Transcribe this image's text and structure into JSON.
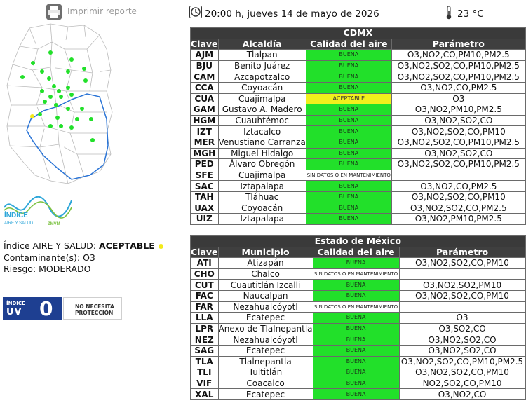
{
  "header": {
    "print_label": "Imprimir reporte",
    "datetime": "20:00 h, jueves 14 de mayo de 2026",
    "temperature": "23 °C"
  },
  "logo": {
    "title": "ÍNDICE",
    "subtitle": "AIRE Y SALUD",
    "tag": "ZMVM"
  },
  "summary": {
    "index_label": "Índice AIRE Y SALUD: ",
    "index_value": "ACEPTABLE",
    "pollutant_label": "Contaminante(s): ",
    "pollutant_value": "O3",
    "risk_label": "Riesgo: ",
    "risk_value": "MODERADO"
  },
  "uv": {
    "small": "ÍNDICE",
    "label": "UV",
    "value": "0",
    "note_line1": "NO NECESITA",
    "note_line2": "PROTECCIÓN"
  },
  "colors": {
    "buena": "#22e02a",
    "aceptable": "#f2f01c",
    "header": "#3f3f3f",
    "uv": "#1e3f91"
  },
  "cdmx": {
    "title": "CDMX",
    "headers": [
      "Clave",
      "Alcaldía",
      "Calidad del aire",
      "Parámetro"
    ],
    "rows": [
      {
        "clave": "AJM",
        "name": "Tlalpan",
        "quality": "BUENA",
        "level": "buena",
        "params": "O3,NO2,CO,PM10,PM2.5"
      },
      {
        "clave": "BJU",
        "name": "Benito Juárez",
        "quality": "BUENA",
        "level": "buena",
        "params": "O3,NO2,SO2,CO,PM10,PM2.5"
      },
      {
        "clave": "CAM",
        "name": "Azcapotzalco",
        "quality": "BUENA",
        "level": "buena",
        "params": "O3,NO2,SO2,CO,PM10,PM2.5"
      },
      {
        "clave": "CCA",
        "name": "Coyoacán",
        "quality": "BUENA",
        "level": "buena",
        "params": "O3,NO2,CO,PM2.5"
      },
      {
        "clave": "CUA",
        "name": "Cuajimalpa",
        "quality": "ACEPTABLE",
        "level": "aceptable",
        "params": "O3"
      },
      {
        "clave": "GAM",
        "name": "Gustavo A. Madero",
        "quality": "BUENA",
        "level": "buena",
        "params": "O3,NO2,PM10,PM2.5"
      },
      {
        "clave": "HGM",
        "name": "Cuauhtémoc",
        "quality": "BUENA",
        "level": "buena",
        "params": "O3,NO2,SO2,CO"
      },
      {
        "clave": "IZT",
        "name": "Iztacalco",
        "quality": "BUENA",
        "level": "buena",
        "params": "O3,NO2,SO2,CO,PM10"
      },
      {
        "clave": "MER",
        "name": "Venustiano Carranza",
        "quality": "BUENA",
        "level": "buena",
        "params": "O3,NO2,SO2,CO,PM10,PM2.5"
      },
      {
        "clave": "MGH",
        "name": "Miguel Hidalgo",
        "quality": "BUENA",
        "level": "buena",
        "params": "O3,NO2,SO2,CO"
      },
      {
        "clave": "PED",
        "name": "Álvaro Obregón",
        "quality": "BUENA",
        "level": "buena",
        "params": "O3,NO2,SO2,CO,PM10,PM2.5"
      },
      {
        "clave": "SFE",
        "name": "Cuajimalpa",
        "quality": "SIN DATOS O EN MANTENIMIENTO",
        "level": "none",
        "params": ""
      },
      {
        "clave": "SAC",
        "name": "Iztapalapa",
        "quality": "BUENA",
        "level": "buena",
        "params": "O3,NO2,CO,PM2.5"
      },
      {
        "clave": "TAH",
        "name": "Tláhuac",
        "quality": "BUENA",
        "level": "buena",
        "params": "O3,NO2,SO2,CO,PM10"
      },
      {
        "clave": "UAX",
        "name": "Coyoacán",
        "quality": "BUENA",
        "level": "buena",
        "params": "O3,NO2,SO2,CO,PM2.5"
      },
      {
        "clave": "UIZ",
        "name": "Iztapalapa",
        "quality": "BUENA",
        "level": "buena",
        "params": "O3,NO2,PM10,PM2.5"
      }
    ]
  },
  "edomex": {
    "title": "Estado de México",
    "headers": [
      "Clave",
      "Municipio",
      "Calidad del aire",
      "Parámetro"
    ],
    "rows": [
      {
        "clave": "ATI",
        "name": "Atizapán",
        "quality": "BUENA",
        "level": "buena",
        "params": "O3,NO2,SO2,CO,PM10"
      },
      {
        "clave": "CHO",
        "name": "Chalco",
        "quality": "SIN DATOS O EN MANTENIMIENTO",
        "level": "none",
        "params": ""
      },
      {
        "clave": "CUT",
        "name": "Cuautitlán Izcalli",
        "quality": "BUENA",
        "level": "buena",
        "params": "O3,NO2,SO2,PM10"
      },
      {
        "clave": "FAC",
        "name": "Naucalpan",
        "quality": "BUENA",
        "level": "buena",
        "params": "O3,NO2,SO2,CO,PM10"
      },
      {
        "clave": "FAR",
        "name": "Nezahualcóyotl",
        "quality": "SIN DATOS O EN MANTENIMIENTO",
        "level": "none",
        "params": ""
      },
      {
        "clave": "LLA",
        "name": "Ecatepec",
        "quality": "BUENA",
        "level": "buena",
        "params": "O3"
      },
      {
        "clave": "LPR",
        "name": "Anexo de Tlalnepantla",
        "quality": "BUENA",
        "level": "buena",
        "params": "O3,SO2,CO"
      },
      {
        "clave": "NEZ",
        "name": "Nezahualcóyotl",
        "quality": "BUENA",
        "level": "buena",
        "params": "O3,NO2,SO2,CO"
      },
      {
        "clave": "SAG",
        "name": "Ecatepec",
        "quality": "BUENA",
        "level": "buena",
        "params": "O3,NO2,SO2,CO"
      },
      {
        "clave": "TLA",
        "name": "Tlalnepantla",
        "quality": "BUENA",
        "level": "buena",
        "params": "O3,NO2,SO2,CO,PM10,PM2.5"
      },
      {
        "clave": "TLI",
        "name": "Tultitlán",
        "quality": "BUENA",
        "level": "buena",
        "params": "O3,NO2,SO2,CO,PM10"
      },
      {
        "clave": "VIF",
        "name": "Coacalco",
        "quality": "BUENA",
        "level": "buena",
        "params": "NO2,SO2,CO,PM10"
      },
      {
        "clave": "XAL",
        "name": "Ecatepec",
        "quality": "BUENA",
        "level": "buena",
        "params": "O3,NO2,CO"
      }
    ]
  }
}
